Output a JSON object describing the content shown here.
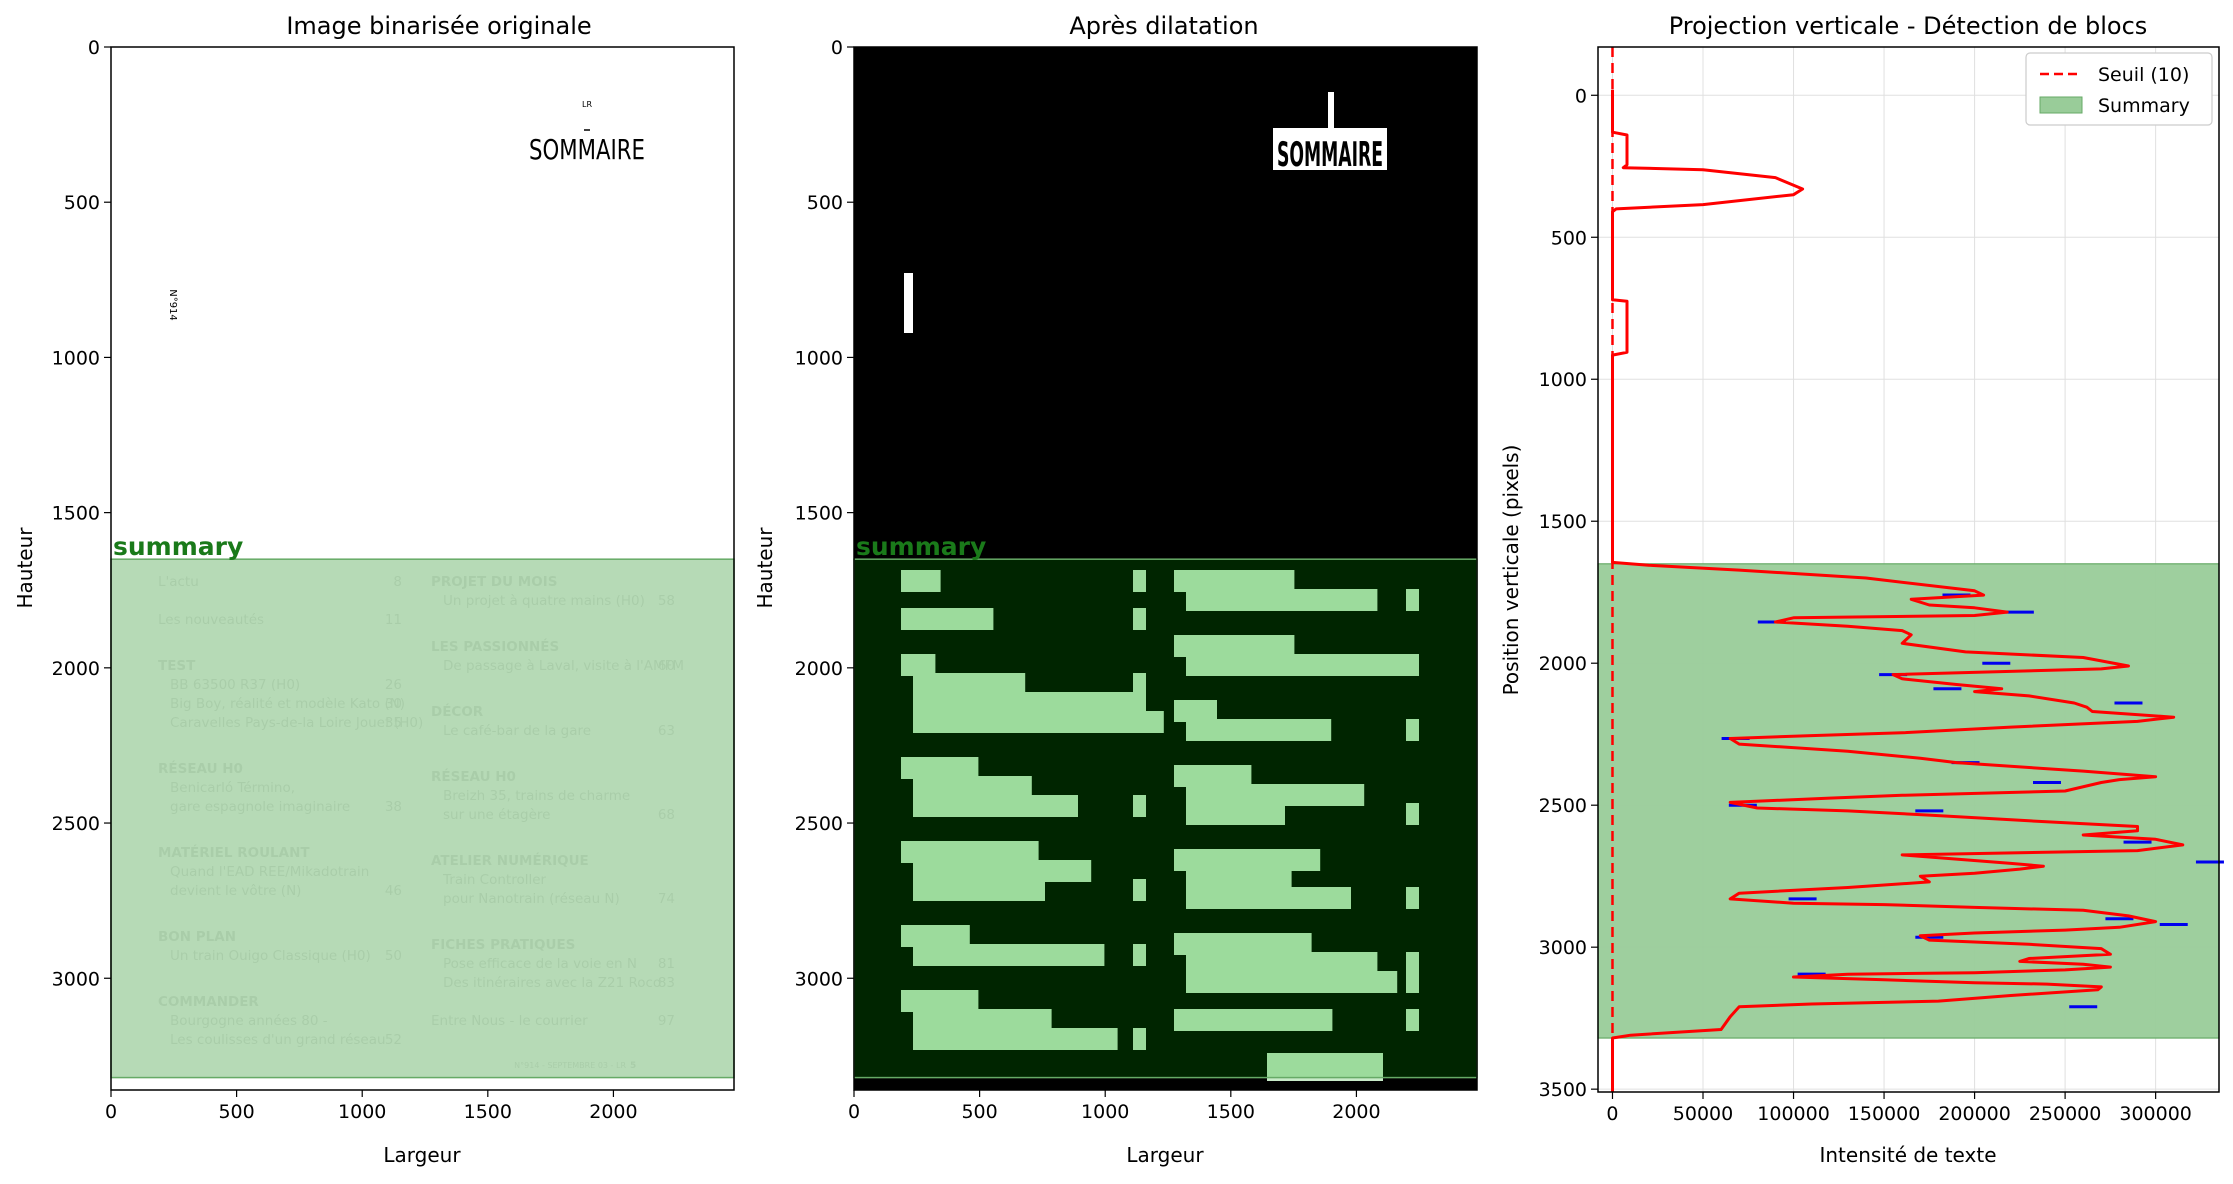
{
  "chart_data": [
    {
      "type": "image",
      "title": "Image binarisée originale",
      "xlabel": "Largeur",
      "ylabel": "Hauteur",
      "xlim": [
        0,
        2480
      ],
      "ylim": [
        3360,
        0
      ],
      "xticks": [
        0,
        500,
        1000,
        1500,
        2000
      ],
      "yticks": [
        0,
        500,
        1000,
        1500,
        2000,
        2500,
        3000
      ],
      "region": {
        "label": "summary",
        "y_start": 1650,
        "y_end": 3320,
        "color": "#b2d8b2"
      },
      "page": {
        "header_small": "LR",
        "header": "SOMMAIRE",
        "side_text": "N°914",
        "columns": [
          [
            {
              "kind": "line",
              "text": "L'actu",
              "page": "8"
            },
            {
              "kind": "line",
              "text": "Les nouveautés",
              "page": "11"
            },
            {
              "kind": "head",
              "text": "TEST"
            },
            {
              "kind": "sub",
              "text": "BB 63500 R37 (H0)",
              "page": "26"
            },
            {
              "kind": "sub",
              "text": "Big Boy, réalité et modèle Kato (N)",
              "page": "30"
            },
            {
              "kind": "sub",
              "text": "Caravelles Pays-de-la Loire Jouef (H0)",
              "page": "35"
            },
            {
              "kind": "head",
              "text": "RÉSEAU H0"
            },
            {
              "kind": "sub",
              "text": "Benicarló Término,"
            },
            {
              "kind": "sub",
              "text": "gare espagnole imaginaire",
              "page": "38"
            },
            {
              "kind": "head",
              "text": "MATÉRIEL ROULANT"
            },
            {
              "kind": "sub",
              "text": "Quand l'EAD REE/Mikadotrain"
            },
            {
              "kind": "sub",
              "text": "devient le vôtre (N)",
              "page": "46"
            },
            {
              "kind": "head",
              "text": "BON PLAN"
            },
            {
              "kind": "sub",
              "text": "Un train Ouigo Classique (H0)",
              "page": "50"
            },
            {
              "kind": "head",
              "text": "COMMANDER"
            },
            {
              "kind": "sub",
              "text": "Bourgogne années 80 -"
            },
            {
              "kind": "sub",
              "text": "Les coulisses d'un grand réseau",
              "page": "52"
            }
          ],
          [
            {
              "kind": "head",
              "text": "PROJET DU MOIS"
            },
            {
              "kind": "sub",
              "text": "Un projet à quatre mains (H0)",
              "page": "58"
            },
            {
              "kind": "head",
              "text": "LES PASSIONNÉS"
            },
            {
              "kind": "sub",
              "text": "De passage à Laval, visite à l'AMFM",
              "page": "60"
            },
            {
              "kind": "head",
              "text": "DÉCOR"
            },
            {
              "kind": "sub",
              "text": "Le café-bar de la gare",
              "page": "63"
            },
            {
              "kind": "head",
              "text": "RÉSEAU H0"
            },
            {
              "kind": "sub",
              "text": "Breizh 35, trains de charme"
            },
            {
              "kind": "sub",
              "text": "sur une étagère",
              "page": "68"
            },
            {
              "kind": "head",
              "text": "ATELIER NUMÉRIQUE"
            },
            {
              "kind": "sub",
              "text": "Train Controller"
            },
            {
              "kind": "sub",
              "text": "pour Nanotrain (réseau N)",
              "page": "74"
            },
            {
              "kind": "head",
              "text": "FICHES PRATIQUES"
            },
            {
              "kind": "sub",
              "text": "Pose efficace de la voie en N",
              "page": "81"
            },
            {
              "kind": "sub",
              "text": "Des itinéraires avec la Z21 Roco",
              "page": "83"
            },
            {
              "kind": "line",
              "text": "Entre Nous - le courrier",
              "page": "97"
            }
          ]
        ],
        "footer": "N°914 - SEPTEMBRE 03 - LR",
        "footer_page": "5"
      }
    },
    {
      "type": "image",
      "title": "Après dilatation",
      "xlabel": "Largeur",
      "ylabel": "Hauteur",
      "xlim": [
        0,
        2480
      ],
      "ylim": [
        3360,
        0
      ],
      "xticks": [
        0,
        500,
        1000,
        1500,
        2000
      ],
      "yticks": [
        0,
        500,
        1000,
        1500,
        2000,
        2500,
        3000
      ],
      "region": {
        "label": "summary",
        "y_start": 1650,
        "y_end": 3320,
        "color": "#00aa00"
      },
      "header": "SOMMAIRE"
    },
    {
      "type": "line",
      "title": "Projection verticale - Détection de blocs",
      "xlabel": "Intensité de texte",
      "ylabel": "Position verticale (pixels)",
      "xlim": [
        -8000,
        335000
      ],
      "ylim": [
        3510,
        -170
      ],
      "xticks": [
        0,
        50000,
        100000,
        150000,
        200000,
        250000,
        300000
      ],
      "yticks": [
        0,
        500,
        1000,
        1500,
        2000,
        2500,
        3000,
        3500
      ],
      "grid": true,
      "legend": "top-right",
      "threshold": {
        "name": "Seuil (10)",
        "value": 0,
        "color": "#ff0000"
      },
      "summary_region": {
        "name": "Summary",
        "y_start": 1650,
        "y_end": 3320,
        "color": "#99cc99"
      },
      "series": [
        {
          "points": [
            [
              0,
              -20
            ],
            [
              0,
              130
            ],
            [
              8000,
              140
            ],
            [
              8000,
              245
            ],
            [
              6000,
              255
            ],
            [
              50000,
              262
            ],
            [
              90000,
              290
            ],
            [
              105000,
              330
            ],
            [
              100000,
              350
            ],
            [
              50000,
              385
            ],
            [
              2000,
              400
            ],
            [
              0,
              410
            ],
            [
              0,
              720
            ],
            [
              8000,
              725
            ],
            [
              8000,
              905
            ],
            [
              0,
              915
            ],
            [
              0,
              1645
            ],
            [
              20000,
              1655
            ],
            [
              70000,
              1672
            ],
            [
              140000,
              1700
            ],
            [
              200000,
              1745
            ],
            [
              205000,
              1760
            ],
            [
              165000,
              1775
            ],
            [
              175000,
              1795
            ],
            [
              200000,
              1805
            ],
            [
              218000,
              1820
            ],
            [
              200000,
              1832
            ],
            [
              100000,
              1840
            ],
            [
              90000,
              1855
            ],
            [
              130000,
              1870
            ],
            [
              160000,
              1885
            ],
            [
              165000,
              1900
            ],
            [
              160000,
              1930
            ],
            [
              195000,
              1960
            ],
            [
              260000,
              1980
            ],
            [
              285000,
              2010
            ],
            [
              270000,
              2020
            ],
            [
              155000,
              2040
            ],
            [
              160000,
              2055
            ],
            [
              190000,
              2075
            ],
            [
              215000,
              2090
            ],
            [
              200000,
              2100
            ],
            [
              230000,
              2115
            ],
            [
              255000,
              2140
            ],
            [
              262000,
              2155
            ],
            [
              265000,
              2170
            ],
            [
              310000,
              2190
            ],
            [
              290000,
              2205
            ],
            [
              220000,
              2225
            ],
            [
              160000,
              2245
            ],
            [
              110000,
              2255
            ],
            [
              65000,
              2265
            ],
            [
              70000,
              2285
            ],
            [
              130000,
              2310
            ],
            [
              170000,
              2335
            ],
            [
              190000,
              2350
            ],
            [
              225000,
              2365
            ],
            [
              260000,
              2380
            ],
            [
              300000,
              2400
            ],
            [
              280000,
              2410
            ],
            [
              270000,
              2420
            ],
            [
              250000,
              2450
            ],
            [
              160000,
              2465
            ],
            [
              120000,
              2475
            ],
            [
              65000,
              2490
            ],
            [
              80000,
              2510
            ],
            [
              130000,
              2520
            ],
            [
              175000,
              2535
            ],
            [
              230000,
              2555
            ],
            [
              290000,
              2575
            ],
            [
              290000,
              2590
            ],
            [
              260000,
              2605
            ],
            [
              300000,
              2620
            ],
            [
              315000,
              2640
            ],
            [
              290000,
              2660
            ],
            [
              160000,
              2675
            ],
            [
              190000,
              2690
            ],
            [
              220000,
              2705
            ],
            [
              238000,
              2715
            ],
            [
              225000,
              2725
            ],
            [
              200000,
              2740
            ],
            [
              170000,
              2750
            ],
            [
              175000,
              2770
            ],
            [
              130000,
              2790
            ],
            [
              70000,
              2810
            ],
            [
              65000,
              2830
            ],
            [
              100000,
              2845
            ],
            [
              150000,
              2850
            ],
            [
              200000,
              2860
            ],
            [
              260000,
              2870
            ],
            [
              285000,
              2890
            ],
            [
              300000,
              2910
            ],
            [
              280000,
              2930
            ],
            [
              250000,
              2940
            ],
            [
              200000,
              2950
            ],
            [
              170000,
              2960
            ],
            [
              175000,
              2975
            ],
            [
              230000,
              2990
            ],
            [
              270000,
              3005
            ],
            [
              275000,
              3025
            ],
            [
              230000,
              3040
            ],
            [
              225000,
              3050
            ],
            [
              260000,
              3060
            ],
            [
              275000,
              3070
            ],
            [
              250000,
              3080
            ],
            [
              200000,
              3090
            ],
            [
              130000,
              3095
            ],
            [
              100000,
              3105
            ],
            [
              150000,
              3115
            ],
            [
              200000,
              3125
            ],
            [
              240000,
              3130
            ],
            [
              270000,
              3140
            ],
            [
              268000,
              3150
            ],
            [
              220000,
              3170
            ],
            [
              180000,
              3190
            ],
            [
              110000,
              3200
            ],
            [
              70000,
              3210
            ],
            [
              65000,
              3245
            ],
            [
              60000,
              3290
            ],
            [
              10000,
              3310
            ],
            [
              0,
              3320
            ],
            [
              0,
              3510
            ]
          ],
          "color": "#ff0000",
          "line_width": 3
        }
      ],
      "blue_markers": [
        [
          190000,
          1760
        ],
        [
          225000,
          1820
        ],
        [
          88000,
          1855
        ],
        [
          212000,
          2000
        ],
        [
          155000,
          2040
        ],
        [
          185000,
          2090
        ],
        [
          285000,
          2140
        ],
        [
          68000,
          2265
        ],
        [
          195000,
          2350
        ],
        [
          240000,
          2420
        ],
        [
          72000,
          2500
        ],
        [
          175000,
          2520
        ],
        [
          290000,
          2630
        ],
        [
          330000,
          2700
        ],
        [
          105000,
          2830
        ],
        [
          280000,
          2900
        ],
        [
          310000,
          2920
        ],
        [
          175000,
          2965
        ],
        [
          110000,
          3095
        ],
        [
          260000,
          3210
        ]
      ]
    }
  ]
}
